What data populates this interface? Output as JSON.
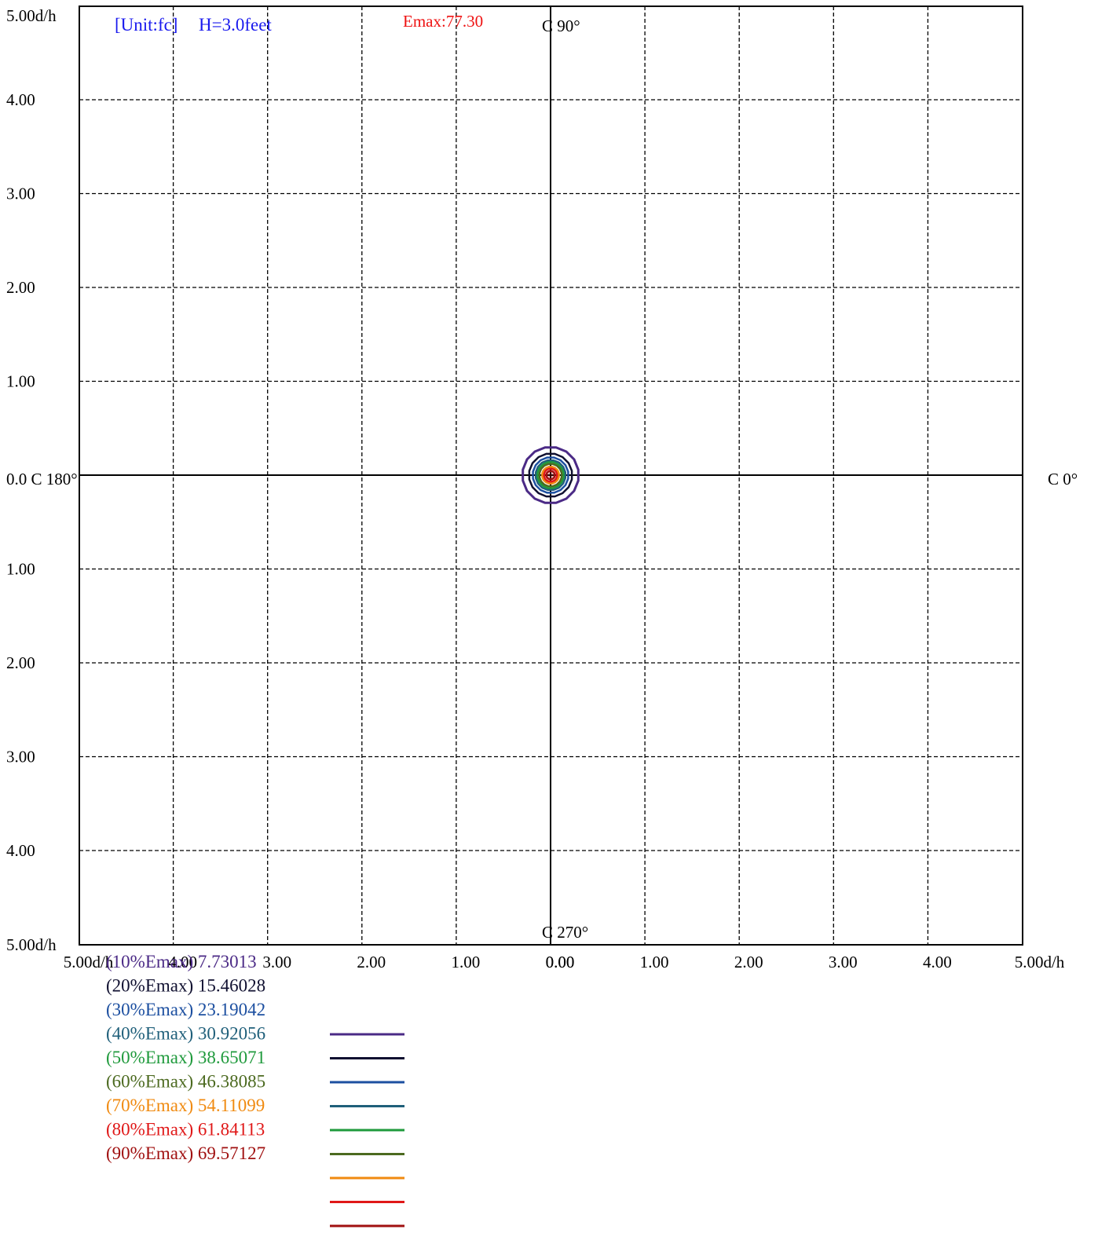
{
  "chart_data": {
    "type": "contour",
    "unit_label": "[Unit:fc]",
    "height_label": "H=3.0feet",
    "emax_label": "Emax:77.30",
    "emax": 77.3,
    "direction_labels": {
      "c0": "C 0°",
      "c90": "C 90°",
      "c180": "0.0 C 180°",
      "c270": "C 270°"
    },
    "y_tick_labels": [
      "5.00d/h",
      "4.00",
      "3.00",
      "2.00",
      "1.00",
      "1.00",
      "2.00",
      "3.00",
      "4.00",
      "5.00d/h"
    ],
    "x_tick_labels": [
      "5.00d/h",
      "4.00",
      "3.00",
      "2.00",
      "1.00",
      "0.00",
      "0.00",
      "1.00",
      "2.00",
      "3.00",
      "4.00",
      "5.00d/h"
    ],
    "xlim": [
      -5,
      5
    ],
    "ylim": [
      -5,
      5
    ],
    "grid": true,
    "levels": [
      {
        "label": "(10%Emax) 7.73013",
        "value": 7.73013,
        "radius": 0.3,
        "color": "#4b2a86"
      },
      {
        "label": "(20%Emax) 15.46028",
        "value": 15.46028,
        "radius": 0.23,
        "color": "#101030"
      },
      {
        "label": "(30%Emax) 23.19042",
        "value": 23.19042,
        "radius": 0.19,
        "color": "#1c4fa0"
      },
      {
        "label": "(40%Emax) 30.92056",
        "value": 30.92056,
        "radius": 0.16,
        "color": "#1f5f7a"
      },
      {
        "label": "(50%Emax) 38.65071",
        "value": 38.65071,
        "radius": 0.14,
        "color": "#1f9a3c"
      },
      {
        "label": "(60%Emax) 46.38085",
        "value": 46.38085,
        "radius": 0.12,
        "color": "#4c6a20"
      },
      {
        "label": "(70%Emax) 54.11099",
        "value": 54.11099,
        "radius": 0.09,
        "color": "#f08a10"
      },
      {
        "label": "(80%Emax) 61.84113",
        "value": 61.84113,
        "radius": 0.07,
        "color": "#e01818"
      },
      {
        "label": "(90%Emax) 69.57127",
        "value": 69.57127,
        "radius": 0.045,
        "color": "#a01010"
      }
    ]
  }
}
